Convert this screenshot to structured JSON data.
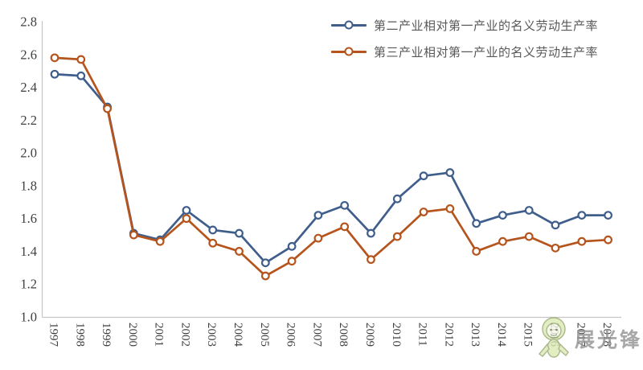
{
  "chart_data": {
    "type": "line",
    "title": "",
    "xlabel": "",
    "ylabel": "",
    "x_categories": [
      "1997",
      "1998",
      "1999",
      "2000",
      "2001",
      "2002",
      "2003",
      "2004",
      "2005",
      "2006",
      "2007",
      "2008",
      "2009",
      "2010",
      "2011",
      "2012",
      "2013",
      "2014",
      "2015",
      "2016",
      "2017",
      "2018"
    ],
    "y_ticks": [
      "2.8",
      "2.6",
      "2.4",
      "2.2",
      "2.0",
      "1.8",
      "1.6",
      "1.4",
      "1.2",
      "1.0"
    ],
    "ylim": [
      1.0,
      2.8
    ],
    "grid": false,
    "legend_position": "top-right",
    "axis_color": "#c6c6c6",
    "tick_color": "#3f3f3f",
    "marker_fill": "#ffffff",
    "series": [
      {
        "name": "第二产业相对第一产业的名义劳动生产率",
        "color": "#3f5e8c",
        "marker": "open-circle",
        "values": [
          2.48,
          2.47,
          2.28,
          1.51,
          1.47,
          1.65,
          1.53,
          1.51,
          1.33,
          1.43,
          1.62,
          1.68,
          1.51,
          1.72,
          1.86,
          1.88,
          1.57,
          1.62,
          1.65,
          1.56,
          1.62,
          1.62
        ]
      },
      {
        "name": "第三产业相对第一产业的名义劳动生产率",
        "color": "#b5541c",
        "marker": "open-circle",
        "values": [
          2.58,
          2.57,
          2.27,
          1.5,
          1.46,
          1.6,
          1.45,
          1.4,
          1.25,
          1.34,
          1.48,
          1.55,
          1.35,
          1.49,
          1.64,
          1.66,
          1.4,
          1.46,
          1.49,
          1.42,
          1.46,
          1.47
        ]
      }
    ]
  },
  "watermark": {
    "text": "展光锋",
    "mascot": "cartoon-mascot-icon"
  }
}
